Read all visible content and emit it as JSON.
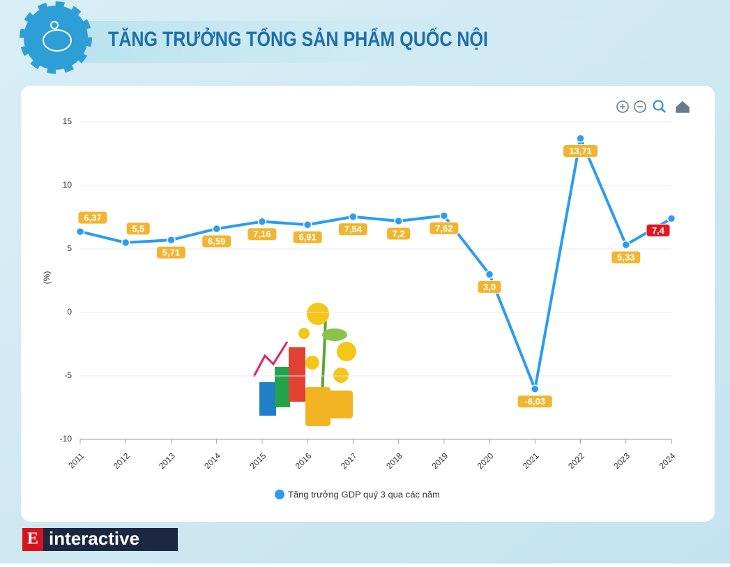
{
  "chart_data": {
    "type": "line",
    "title": "TĂNG TRƯỞNG TỔNG SẢN PHẨM QUỐC NỘI",
    "y_label": "(%)",
    "categories": [
      "2011",
      "2012",
      "2013",
      "2014",
      "2015",
      "2016",
      "2017",
      "2018",
      "2019",
      "2020",
      "2021",
      "2022",
      "2023",
      "2024"
    ],
    "series": [
      {
        "name": "Tăng trưởng GDP quý 3 qua các năm",
        "color": "#2b9cf2",
        "values": [
          6.37,
          5.5,
          5.71,
          6.59,
          7.16,
          6.91,
          7.54,
          7.2,
          7.62,
          3.0,
          -6.03,
          13.71,
          5.33,
          7.4
        ],
        "value_labels": [
          "6,37",
          "5,5",
          "5,71",
          "6,59",
          "7,16",
          "6,91",
          "7,54",
          "7,2",
          "7,62",
          "3,0",
          "-6,03",
          "13,71",
          "5,33",
          "7,4"
        ]
      }
    ],
    "label_color": "#f2b531",
    "highlight": {
      "index": 13,
      "color": "#e3151e"
    },
    "ylim": [
      -10,
      15
    ],
    "yticks": [
      15,
      10,
      5,
      0,
      -5,
      -10
    ],
    "grid": true
  },
  "footer": {
    "logo_letter": "E",
    "logo_text": "interactive"
  }
}
